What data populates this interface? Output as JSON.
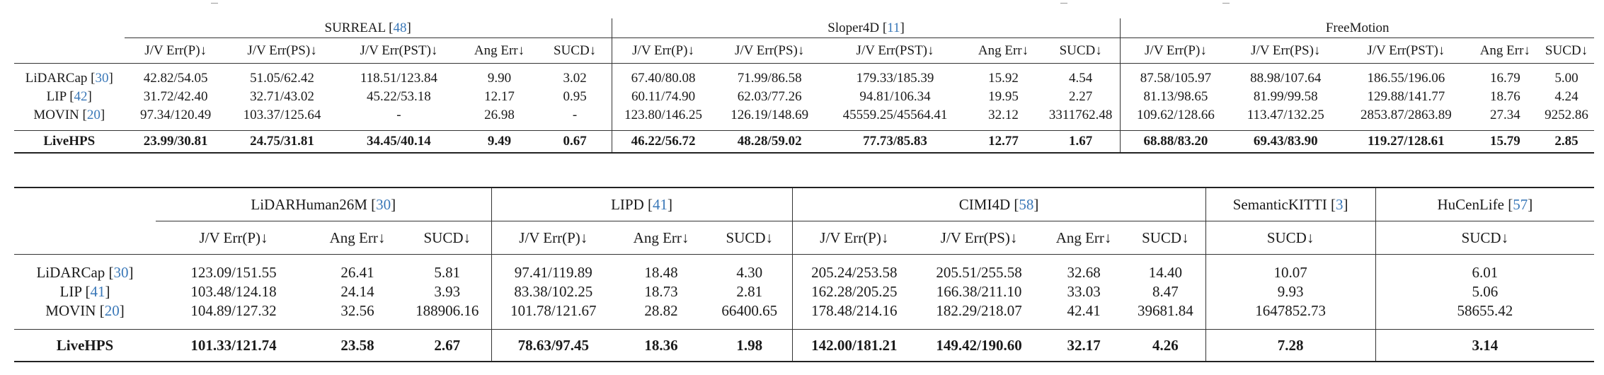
{
  "table1": {
    "groups": [
      {
        "name": "SURREAL",
        "cite": "48"
      },
      {
        "name": "Sloper4D",
        "cite": "11"
      },
      {
        "name": "FreeMotion",
        "cite": ""
      }
    ],
    "headers": [
      "J/V Err(P)↓",
      "J/V Err(PS)↓",
      "J/V Err(PST)↓",
      "Ang Err↓",
      "SUCD↓"
    ],
    "rows": [
      {
        "method": "LiDARCap",
        "cite": "30",
        "values": [
          "42.82/54.05",
          "51.05/62.42",
          "118.51/123.84",
          "9.90",
          "3.02",
          "67.40/80.08",
          "71.99/86.58",
          "179.33/185.39",
          "15.92",
          "4.54",
          "87.58/105.97",
          "88.98/107.64",
          "186.55/196.06",
          "16.79",
          "5.00"
        ]
      },
      {
        "method": "LIP",
        "cite": "42",
        "values": [
          "31.72/42.40",
          "32.71/43.02",
          "45.22/53.18",
          "12.17",
          "0.95",
          "60.11/74.90",
          "62.03/77.26",
          "94.81/106.34",
          "19.95",
          "2.27",
          "81.13/98.65",
          "81.99/99.58",
          "129.88/141.77",
          "18.76",
          "4.24"
        ]
      },
      {
        "method": "MOVIN",
        "cite": "20",
        "values": [
          "97.34/120.49",
          "103.37/125.64",
          "-",
          "26.98",
          "-",
          "123.80/146.25",
          "126.19/148.69",
          "45559.25/45564.41",
          "32.12",
          "3311762.48",
          "109.62/128.66",
          "113.47/132.25",
          "2853.87/2863.89",
          "27.34",
          "9252.86"
        ]
      }
    ],
    "best": {
      "method": "LiveHPS",
      "values": [
        "23.99/30.81",
        "24.75/31.81",
        "34.45/40.14",
        "9.49",
        "0.67",
        "46.22/56.72",
        "48.28/59.02",
        "77.73/85.83",
        "12.77",
        "1.67",
        "68.88/83.20",
        "69.43/83.90",
        "119.27/128.61",
        "15.79",
        "2.85"
      ]
    }
  },
  "table2": {
    "groups": [
      {
        "name": "LiDARHuman26M",
        "cite": "30",
        "headers": [
          "J/V Err(P)↓",
          "Ang Err↓",
          "SUCD↓"
        ]
      },
      {
        "name": "LIPD",
        "cite": "41",
        "headers": [
          "J/V Err(P)↓",
          "Ang Err↓",
          "SUCD↓"
        ]
      },
      {
        "name": "CIMI4D",
        "cite": "58",
        "headers": [
          "J/V Err(P)↓",
          "J/V Err(PS)↓",
          "Ang Err↓",
          "SUCD↓"
        ]
      },
      {
        "name": "SemanticKITTI",
        "cite": "3",
        "headers": [
          "SUCD↓"
        ]
      },
      {
        "name": "HuCenLife",
        "cite": "57",
        "headers": [
          "SUCD↓"
        ]
      }
    ],
    "rows": [
      {
        "method": "LiDARCap",
        "cite": "30",
        "values": [
          "123.09/151.55",
          "26.41",
          "5.81",
          "97.41/119.89",
          "18.48",
          "4.30",
          "205.24/253.58",
          "205.51/255.58",
          "32.68",
          "14.40",
          "10.07",
          "6.01"
        ]
      },
      {
        "method": "LIP",
        "cite": "41",
        "values": [
          "103.48/124.18",
          "24.14",
          "3.93",
          "83.38/102.25",
          "18.73",
          "2.81",
          "162.28/205.25",
          "166.38/211.10",
          "33.03",
          "8.47",
          "9.93",
          "5.06"
        ]
      },
      {
        "method": "MOVIN",
        "cite": "20",
        "values": [
          "104.89/127.32",
          "32.56",
          "188906.16",
          "101.78/121.67",
          "28.82",
          "66400.65",
          "178.48/214.16",
          "182.29/218.07",
          "42.41",
          "39681.84",
          "1647852.73",
          "58655.42"
        ]
      }
    ],
    "best": {
      "method": "LiveHPS",
      "values": [
        "101.33/121.74",
        "23.58",
        "2.67",
        "78.63/97.45",
        "18.36",
        "1.98",
        "142.00/181.21",
        "149.42/190.60",
        "32.17",
        "4.26",
        "7.28",
        "3.14"
      ]
    }
  },
  "colors": {
    "citation": "#3a78b8",
    "text": "#1a1a1a"
  }
}
